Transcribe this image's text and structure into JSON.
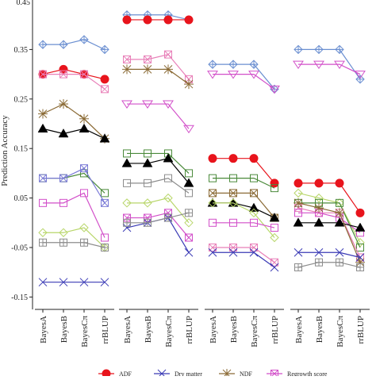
{
  "chart_data": {
    "type": "line",
    "ylabel": "Prediction Accuracy",
    "ylim": [
      -0.175,
      0.45
    ],
    "yticks": [
      -0.15,
      -0.05,
      0.05,
      0.15,
      0.25,
      0.35
    ],
    "ytick_labels": [
      "-0.15",
      "-0.05",
      "0.05",
      "0.15",
      "0.25",
      "0.35"
    ],
    "top_partial_tick_label": "0.45",
    "categories": [
      "BayesA",
      "BayesB",
      "BayesCπ",
      "rrBLUP"
    ],
    "grid": false,
    "legend_position": "bottom",
    "legend": [
      {
        "name": "ADF",
        "color": "#e8141c",
        "marker": "circle"
      },
      {
        "name": "Dry matter",
        "color": "#3a3ab5",
        "marker": "x"
      },
      {
        "name": "NDF",
        "color": "#8b6b36",
        "marker": "star"
      },
      {
        "name": "Regrowth score",
        "color": "#d24fc9",
        "marker": "square-x"
      }
    ],
    "panels": [
      {
        "series": [
          {
            "color": "#6b8fd1",
            "marker": "diamond-plus",
            "values": [
              0.36,
              0.36,
              0.37,
              0.35
            ]
          },
          {
            "color": "#e8141c",
            "marker": "circle",
            "values": [
              0.3,
              0.31,
              0.3,
              0.29
            ]
          },
          {
            "color": "#e87fb8",
            "marker": "square-x",
            "values": [
              0.3,
              0.3,
              0.3,
              0.27
            ]
          },
          {
            "color": "#8b6b36",
            "marker": "star",
            "values": [
              0.22,
              0.24,
              0.21,
              0.17
            ]
          },
          {
            "color": "#000000",
            "marker": "triangle",
            "values": [
              0.19,
              0.18,
              0.19,
              0.17
            ]
          },
          {
            "color": "#4a8a3a",
            "marker": "square",
            "values": [
              0.09,
              0.09,
              0.1,
              0.06
            ]
          },
          {
            "color": "#7a7ad6",
            "marker": "square-x",
            "values": [
              0.09,
              0.09,
              0.11,
              0.04
            ]
          },
          {
            "color": "#d24fc9",
            "marker": "square",
            "values": [
              0.04,
              0.04,
              0.06,
              -0.03
            ]
          },
          {
            "color": "#b8d66a",
            "marker": "diamond",
            "values": [
              -0.02,
              -0.02,
              -0.01,
              -0.05
            ]
          },
          {
            "color": "#8c8c8c",
            "marker": "square-plus",
            "values": [
              -0.04,
              -0.04,
              -0.04,
              -0.05
            ]
          },
          {
            "color": "#3a3ab5",
            "marker": "x",
            "values": [
              -0.12,
              -0.12,
              -0.12,
              -0.12
            ]
          }
        ]
      },
      {
        "series": [
          {
            "color": "#6b8fd1",
            "marker": "diamond-plus",
            "values": [
              0.42,
              0.42,
              0.42,
              0.41
            ]
          },
          {
            "color": "#e8141c",
            "marker": "circle",
            "values": [
              0.41,
              0.41,
              0.41,
              0.41
            ]
          },
          {
            "color": "#e87fb8",
            "marker": "square-x",
            "values": [
              0.33,
              0.33,
              0.34,
              0.29
            ]
          },
          {
            "color": "#8b6b36",
            "marker": "star",
            "values": [
              0.31,
              0.31,
              0.31,
              0.28
            ]
          },
          {
            "color": "#d24fc9",
            "marker": "triangle-down",
            "values": [
              0.24,
              0.24,
              0.24,
              0.19
            ]
          },
          {
            "color": "#4a8a3a",
            "marker": "square",
            "values": [
              0.14,
              0.14,
              0.14,
              0.1
            ]
          },
          {
            "color": "#000000",
            "marker": "triangle",
            "values": [
              0.12,
              0.12,
              0.13,
              0.08
            ]
          },
          {
            "color": "#8c8c8c",
            "marker": "square",
            "values": [
              0.08,
              0.08,
              0.09,
              0.06
            ]
          },
          {
            "color": "#b8d66a",
            "marker": "diamond",
            "values": [
              0.04,
              0.04,
              0.05,
              0.0
            ]
          },
          {
            "color": "#d24fc9",
            "marker": "square-x",
            "values": [
              0.01,
              0.01,
              0.02,
              -0.03
            ]
          },
          {
            "color": "#3a3ab5",
            "marker": "x",
            "values": [
              -0.01,
              0.0,
              0.01,
              -0.06
            ]
          },
          {
            "color": "#8c8c8c",
            "marker": "square-plus",
            "values": [
              0.0,
              0.0,
              0.01,
              0.02
            ]
          }
        ]
      },
      {
        "series": [
          {
            "color": "#6b8fd1",
            "marker": "diamond-plus",
            "values": [
              0.32,
              0.32,
              0.32,
              0.27
            ]
          },
          {
            "color": "#d24fc9",
            "marker": "triangle-down",
            "values": [
              0.3,
              0.3,
              0.3,
              0.27
            ]
          },
          {
            "color": "#e8141c",
            "marker": "circle",
            "values": [
              0.13,
              0.13,
              0.13,
              0.08
            ]
          },
          {
            "color": "#4a8a3a",
            "marker": "square",
            "values": [
              0.09,
              0.09,
              0.09,
              0.07
            ]
          },
          {
            "color": "#8b6b36",
            "marker": "square-x",
            "values": [
              0.06,
              0.06,
              0.06,
              0.01
            ]
          },
          {
            "color": "#000000",
            "marker": "triangle",
            "values": [
              0.04,
              0.04,
              0.03,
              0.01
            ]
          },
          {
            "color": "#b8d66a",
            "marker": "diamond",
            "values": [
              0.04,
              0.04,
              0.02,
              -0.03
            ]
          },
          {
            "color": "#d24fc9",
            "marker": "square",
            "values": [
              0.0,
              0.0,
              0.0,
              -0.01
            ]
          },
          {
            "color": "#e87fb8",
            "marker": "square-x",
            "values": [
              -0.05,
              -0.05,
              -0.05,
              -0.08
            ]
          },
          {
            "color": "#3a3ab5",
            "marker": "x",
            "values": [
              -0.06,
              -0.06,
              -0.06,
              -0.09
            ]
          }
        ]
      },
      {
        "series": [
          {
            "color": "#6b8fd1",
            "marker": "diamond-plus",
            "values": [
              0.35,
              0.35,
              0.35,
              0.29
            ]
          },
          {
            "color": "#d24fc9",
            "marker": "triangle-down",
            "values": [
              0.32,
              0.32,
              0.32,
              0.3
            ]
          },
          {
            "color": "#e8141c",
            "marker": "circle",
            "values": [
              0.08,
              0.08,
              0.08,
              0.02
            ]
          },
          {
            "color": "#b8d66a",
            "marker": "diamond",
            "values": [
              0.06,
              0.05,
              0.04,
              -0.04
            ]
          },
          {
            "color": "#4a8a3a",
            "marker": "square",
            "values": [
              0.04,
              0.04,
              0.04,
              -0.05
            ]
          },
          {
            "color": "#e87fb8",
            "marker": "square-x",
            "values": [
              0.03,
              0.02,
              0.02,
              -0.07
            ]
          },
          {
            "color": "#d24fc9",
            "marker": "square",
            "values": [
              0.02,
              0.02,
              0.01,
              -0.02
            ]
          },
          {
            "color": "#000000",
            "marker": "triangle",
            "values": [
              0.0,
              0.0,
              0.0,
              -0.01
            ]
          },
          {
            "color": "#8b6b36",
            "marker": "star",
            "values": [
              0.04,
              0.03,
              0.02,
              -0.08
            ]
          },
          {
            "color": "#3a3ab5",
            "marker": "x",
            "values": [
              -0.06,
              -0.06,
              -0.06,
              -0.07
            ]
          },
          {
            "color": "#8c8c8c",
            "marker": "square-plus",
            "values": [
              -0.09,
              -0.08,
              -0.08,
              -0.09
            ]
          }
        ]
      }
    ]
  }
}
